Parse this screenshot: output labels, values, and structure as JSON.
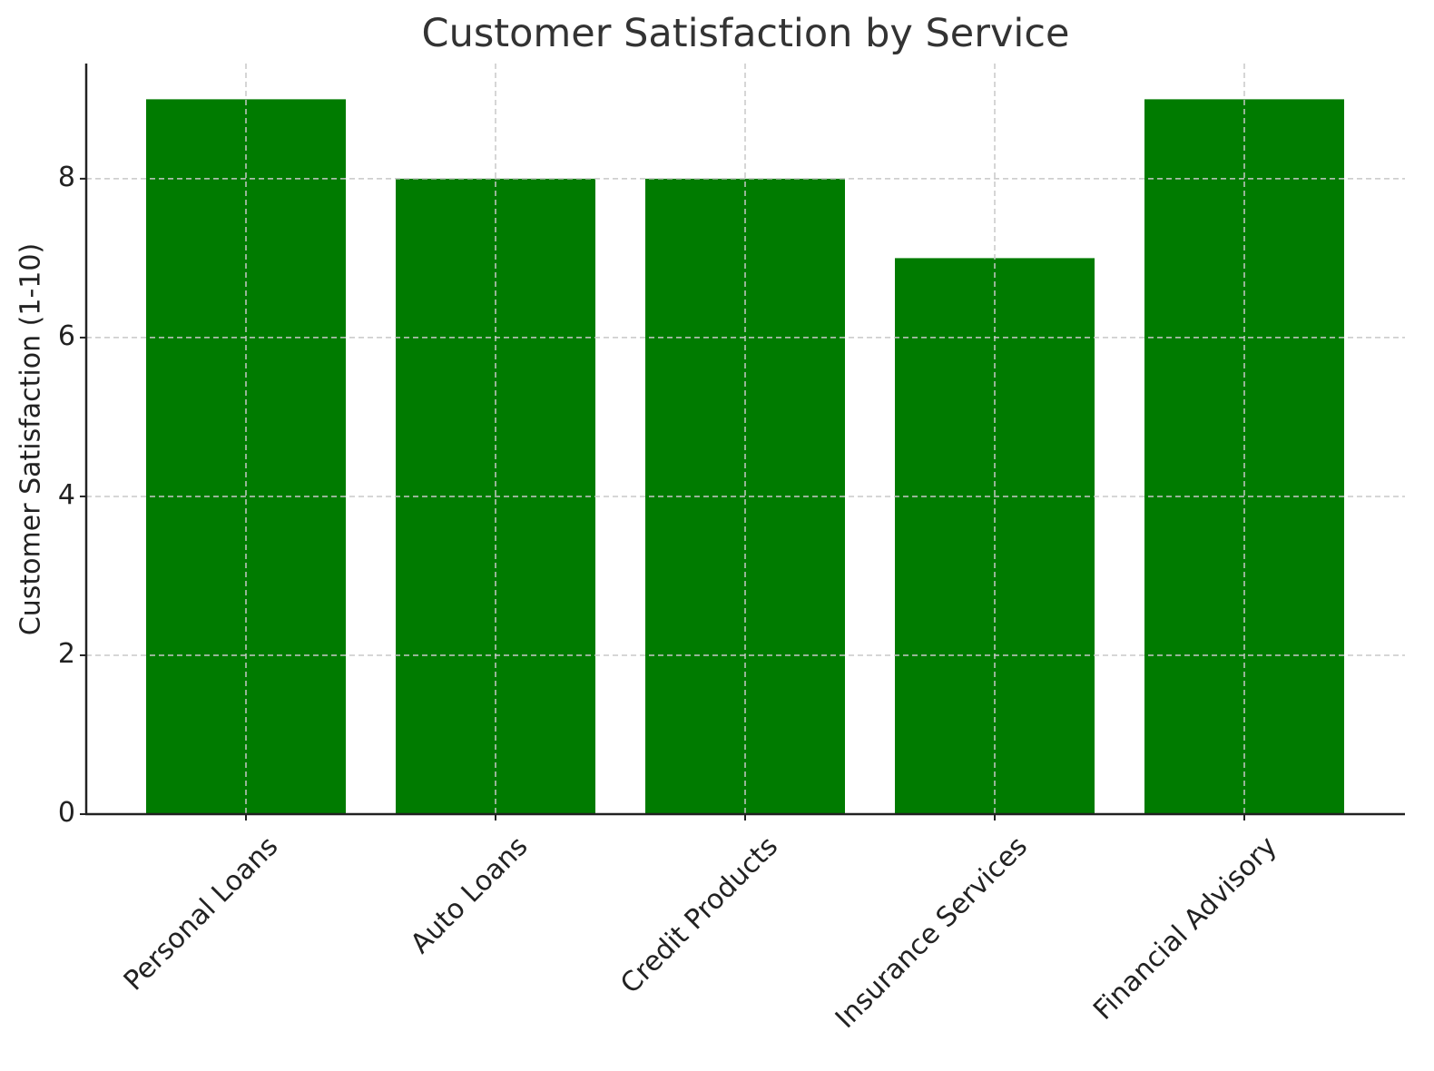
{
  "chart_data": {
    "type": "bar",
    "title": "Customer Satisfaction by Service",
    "xlabel": "",
    "ylabel": "Customer Satisfaction (1-10)",
    "categories": [
      "Personal Loans",
      "Auto Loans",
      "Credit Products",
      "Insurance Services",
      "Financial Advisory"
    ],
    "values": [
      9,
      8,
      8,
      7,
      9
    ],
    "ylim": [
      0,
      9.45
    ],
    "yticks": [
      0,
      2,
      4,
      6,
      8
    ],
    "grid": true,
    "legend": null,
    "bar_color": "#007b00",
    "xtick_rotation": 45
  }
}
